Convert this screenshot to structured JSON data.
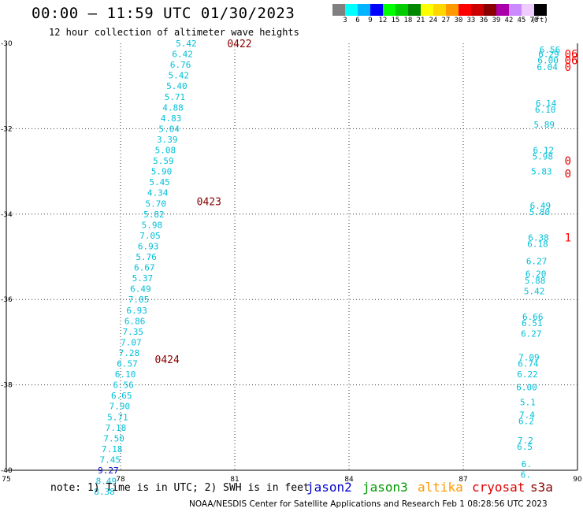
{
  "title": "00:00 – 11:59 UTC 01/30/2023",
  "subtitle": "12 hour collection of altimeter wave heights",
  "colorbar": {
    "colors": [
      "#808080",
      "#00ffff",
      "#00b4ff",
      "#0000ff",
      "#00ff00",
      "#00cc00",
      "#008800",
      "#ffff00",
      "#ffd700",
      "#ff9900",
      "#ff0000",
      "#cc0000",
      "#880000",
      "#aa00aa",
      "#cc88ff",
      "#eeccff",
      "#000000"
    ],
    "labels": [
      "3",
      "6",
      "9",
      "12",
      "15",
      "18",
      "21",
      "24",
      "27",
      "30",
      "33",
      "36",
      "39",
      "42",
      "45",
      "70",
      "(ft)"
    ]
  },
  "note": "note: 1) Time is in UTC; 2) SWH is in feet",
  "satellites": [
    {
      "name": "jason2",
      "color": "#0000cc"
    },
    {
      "name": "jason3",
      "color": "#009900"
    },
    {
      "name": "altika",
      "color": "#ff9900"
    },
    {
      "name": "cryosat",
      "color": "#dd0000"
    },
    {
      "name": "s3a",
      "color": "#880000"
    }
  ],
  "credit": "NOAA/NESDIS Center for Satellite Applications and Research   Feb  1 08:28:56 UTC 2023",
  "chart_data": {
    "type": "scatter",
    "xlim": [
      75,
      90
    ],
    "ylim": [
      -40,
      -30
    ],
    "xticks": [
      "75",
      "78",
      "81",
      "84",
      "87",
      "90"
    ],
    "yticks": [
      "-30",
      "-32",
      "-34",
      "-36",
      "-38",
      "-40"
    ],
    "grid": true,
    "track_left": {
      "color": "#00c0d8",
      "points": [
        {
          "x": 80.0,
          "y": -30.0,
          "v": "5.42"
        },
        {
          "x": 79.9,
          "y": -30.25,
          "v": "6.42"
        },
        {
          "x": 79.85,
          "y": -30.5,
          "v": "6.76"
        },
        {
          "x": 79.8,
          "y": -30.75,
          "v": "5.42"
        },
        {
          "x": 79.75,
          "y": -31.0,
          "v": "5.40"
        },
        {
          "x": 79.7,
          "y": -31.25,
          "v": "5.71"
        },
        {
          "x": 79.65,
          "y": -31.5,
          "v": "4.88"
        },
        {
          "x": 79.6,
          "y": -31.75,
          "v": "4.83"
        },
        {
          "x": 79.55,
          "y": -32.0,
          "v": "5.04"
        },
        {
          "x": 79.5,
          "y": -32.25,
          "v": "3.39"
        },
        {
          "x": 79.45,
          "y": -32.5,
          "v": "5.08"
        },
        {
          "x": 79.4,
          "y": -32.75,
          "v": "5.59"
        },
        {
          "x": 79.35,
          "y": -33.0,
          "v": "5.90"
        },
        {
          "x": 79.3,
          "y": -33.25,
          "v": "5.45"
        },
        {
          "x": 79.25,
          "y": -33.5,
          "v": "4.34"
        },
        {
          "x": 79.2,
          "y": -33.75,
          "v": "5.70"
        },
        {
          "x": 79.15,
          "y": -34.0,
          "v": "5.82"
        },
        {
          "x": 79.1,
          "y": -34.25,
          "v": "5.98"
        },
        {
          "x": 79.05,
          "y": -34.5,
          "v": "7.05"
        },
        {
          "x": 79.0,
          "y": -34.75,
          "v": "6.93"
        },
        {
          "x": 78.95,
          "y": -35.0,
          "v": "5.76"
        },
        {
          "x": 78.9,
          "y": -35.25,
          "v": "6.67"
        },
        {
          "x": 78.85,
          "y": -35.5,
          "v": "5.37"
        },
        {
          "x": 78.8,
          "y": -35.75,
          "v": "6.49"
        },
        {
          "x": 78.75,
          "y": -36.0,
          "v": "7.05"
        },
        {
          "x": 78.7,
          "y": -36.25,
          "v": "6.93"
        },
        {
          "x": 78.65,
          "y": -36.5,
          "v": "6.86"
        },
        {
          "x": 78.6,
          "y": -36.75,
          "v": "7.35"
        },
        {
          "x": 78.55,
          "y": -37.0,
          "v": "7.07"
        },
        {
          "x": 78.5,
          "y": -37.25,
          "v": "7.28"
        },
        {
          "x": 78.45,
          "y": -37.5,
          "v": "6.57"
        },
        {
          "x": 78.4,
          "y": -37.75,
          "v": "6.10"
        },
        {
          "x": 78.35,
          "y": -38.0,
          "v": "6.56"
        },
        {
          "x": 78.3,
          "y": -38.25,
          "v": "6.65"
        },
        {
          "x": 78.25,
          "y": -38.5,
          "v": "7.90"
        },
        {
          "x": 78.2,
          "y": -38.75,
          "v": "5.71"
        },
        {
          "x": 78.15,
          "y": -39.0,
          "v": "7.18"
        },
        {
          "x": 78.1,
          "y": -39.25,
          "v": "7.50"
        },
        {
          "x": 78.05,
          "y": -39.5,
          "v": "7.18"
        },
        {
          "x": 78.0,
          "y": -39.75,
          "v": "7.45"
        },
        {
          "x": 77.95,
          "y": -40.0,
          "v": "9.27",
          "color": "#0000cc"
        },
        {
          "x": 77.9,
          "y": -40.25,
          "v": "8.49"
        },
        {
          "x": 77.85,
          "y": -40.5,
          "v": "8.38"
        }
      ]
    },
    "track_right": {
      "color": "#00c0d8",
      "points": [
        {
          "x": 89.55,
          "y": -30.15,
          "v": "6.56"
        },
        {
          "x": 89.52,
          "y": -30.25,
          "v": "6.29"
        },
        {
          "x": 89.5,
          "y": -30.4,
          "v": "6.00"
        },
        {
          "x": 89.48,
          "y": -30.55,
          "v": "6.04"
        },
        {
          "x": 89.45,
          "y": -31.4,
          "v": "6.14"
        },
        {
          "x": 89.43,
          "y": -31.55,
          "v": "6.10"
        },
        {
          "x": 89.4,
          "y": -31.9,
          "v": "5.89"
        },
        {
          "x": 89.38,
          "y": -32.5,
          "v": "6.12"
        },
        {
          "x": 89.36,
          "y": -32.65,
          "v": "5.98"
        },
        {
          "x": 89.33,
          "y": -33.0,
          "v": "5.83"
        },
        {
          "x": 89.3,
          "y": -33.8,
          "v": "6.49"
        },
        {
          "x": 89.28,
          "y": -33.95,
          "v": "5.80"
        },
        {
          "x": 89.25,
          "y": -34.55,
          "v": "6.38"
        },
        {
          "x": 89.23,
          "y": -34.7,
          "v": "6.18"
        },
        {
          "x": 89.2,
          "y": -35.1,
          "v": "6.27"
        },
        {
          "x": 89.18,
          "y": -35.4,
          "v": "6.20"
        },
        {
          "x": 89.16,
          "y": -35.55,
          "v": "5.88"
        },
        {
          "x": 89.14,
          "y": -35.8,
          "v": "5.42"
        },
        {
          "x": 89.1,
          "y": -36.4,
          "v": "6.66"
        },
        {
          "x": 89.08,
          "y": -36.55,
          "v": "6.51"
        },
        {
          "x": 89.06,
          "y": -36.8,
          "v": "6.27"
        },
        {
          "x": 89.0,
          "y": -37.35,
          "v": "7.09"
        },
        {
          "x": 88.98,
          "y": -37.5,
          "v": "6.74"
        },
        {
          "x": 88.96,
          "y": -37.75,
          "v": "6.22"
        },
        {
          "x": 88.94,
          "y": -38.05,
          "v": "6.00"
        },
        {
          "x": 88.9,
          "y": -38.4,
          "v": "5.1"
        },
        {
          "x": 88.88,
          "y": -38.7,
          "v": "7.4"
        },
        {
          "x": 88.86,
          "y": -38.85,
          "v": "6.2"
        },
        {
          "x": 88.84,
          "y": -39.3,
          "v": "7.2"
        },
        {
          "x": 88.82,
          "y": -39.45,
          "v": "6.5"
        },
        {
          "x": 88.8,
          "y": -39.85,
          "v": "6."
        },
        {
          "x": 88.78,
          "y": -40.1,
          "v": "6."
        }
      ]
    },
    "time_labels": [
      {
        "x": 80.8,
        "y": -30.0,
        "label": "0422"
      },
      {
        "x": 80.0,
        "y": -33.7,
        "label": "0423"
      },
      {
        "x": 78.9,
        "y": -37.4,
        "label": "0424"
      }
    ],
    "right_edge_labels": [
      {
        "x": 89.95,
        "y": -30.25,
        "label": "06",
        "color": "#ff0000"
      },
      {
        "x": 89.95,
        "y": -30.4,
        "label": "06",
        "color": "#ff0000"
      },
      {
        "x": 89.95,
        "y": -30.55,
        "label": "0",
        "color": "#ff0000"
      },
      {
        "x": 89.95,
        "y": -32.75,
        "label": "0",
        "color": "#dd0000"
      },
      {
        "x": 89.95,
        "y": -33.05,
        "label": "0",
        "color": "#dd0000"
      },
      {
        "x": 89.95,
        "y": -34.55,
        "label": "1",
        "color": "#ff0000"
      }
    ]
  }
}
